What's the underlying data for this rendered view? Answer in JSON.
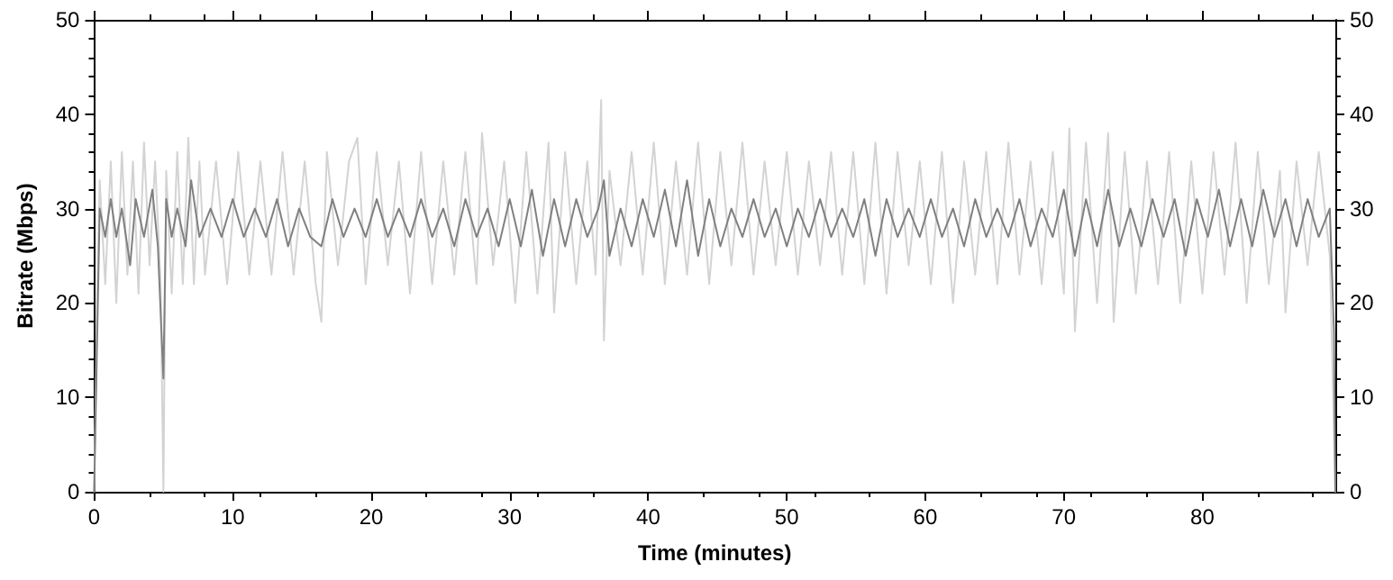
{
  "chart_data": {
    "type": "line",
    "xlabel": "Time (minutes)",
    "ylabel": "Bitrate (Mbps)",
    "xlim": [
      0,
      89.6
    ],
    "xticks": [
      0,
      10,
      20,
      30,
      40,
      50,
      60,
      70,
      80
    ],
    "ylim": [
      0,
      50
    ],
    "yticks": [
      0,
      10,
      20,
      30,
      40,
      50
    ],
    "y2lim": [
      0,
      50
    ],
    "y2ticks": [
      0,
      10,
      20,
      30,
      40,
      50
    ],
    "grid": false,
    "marker": "none",
    "line_style": "solid",
    "series": [
      {
        "color": "#d3d3d3",
        "x": [
          0,
          0.2,
          0.4,
          0.8,
          1.2,
          1.6,
          2.0,
          2.4,
          2.8,
          3.2,
          3.6,
          4.0,
          4.4,
          4.8,
          5.0,
          5.2,
          5.6,
          6.0,
          6.4,
          6.8,
          7.2,
          7.6,
          8.0,
          8.8,
          9.6,
          10.4,
          11.2,
          12.0,
          12.8,
          13.6,
          14.4,
          15.2,
          16.0,
          16.4,
          16.8,
          17.6,
          18.4,
          19.0,
          19.6,
          20.4,
          21.2,
          22.0,
          22.8,
          23.6,
          24.4,
          25.2,
          26.0,
          26.8,
          27.6,
          28.0,
          28.8,
          29.6,
          30.4,
          31.2,
          32.0,
          32.8,
          33.2,
          34.0,
          34.8,
          35.6,
          36.2,
          36.6,
          36.8,
          37.2,
          38.0,
          38.8,
          39.6,
          40.4,
          41.2,
          42.0,
          42.8,
          43.6,
          44.4,
          45.2,
          46.0,
          46.8,
          47.6,
          48.4,
          49.2,
          50.0,
          50.8,
          51.6,
          52.4,
          53.2,
          54.0,
          54.8,
          55.6,
          56.4,
          57.2,
          58.0,
          58.8,
          59.6,
          60.4,
          61.2,
          62.0,
          62.8,
          63.6,
          64.4,
          65.2,
          66.0,
          66.8,
          67.6,
          68.4,
          69.2,
          70.0,
          70.4,
          70.8,
          71.6,
          72.4,
          73.2,
          73.6,
          74.4,
          75.2,
          76.0,
          76.8,
          77.6,
          78.4,
          79.2,
          80.0,
          80.8,
          81.6,
          82.4,
          83.2,
          84.0,
          84.8,
          85.6,
          86.0,
          86.8,
          87.6,
          88.4,
          89.2,
          89.6
        ],
        "values": [
          0,
          19,
          33,
          22,
          35,
          20,
          36,
          23,
          35,
          21,
          37,
          24,
          35,
          22,
          0,
          34,
          21,
          36,
          22,
          37.5,
          22,
          35,
          23,
          35,
          22,
          36,
          23,
          35,
          23,
          36,
          23,
          35,
          22,
          18,
          36,
          24,
          35,
          37.5,
          22,
          36,
          24,
          35,
          21,
          36,
          22,
          35,
          23,
          36,
          22,
          38,
          24,
          35,
          20,
          36,
          21,
          37,
          19,
          36,
          22,
          35,
          23,
          41.5,
          16,
          34,
          24,
          36,
          23,
          37,
          22,
          35,
          23,
          37,
          22,
          36,
          24,
          37,
          23,
          35,
          24,
          36,
          23,
          35,
          24,
          36,
          23,
          36,
          22,
          37,
          21,
          36,
          24,
          35,
          22,
          36,
          20,
          35,
          23,
          36,
          22,
          37,
          23,
          35,
          22,
          36,
          21,
          38.5,
          17,
          37,
          20,
          38,
          18,
          36,
          21,
          35,
          22,
          36,
          20,
          35,
          21,
          36,
          23,
          37,
          20,
          36,
          22,
          34,
          19,
          35,
          24,
          36,
          25,
          0
        ]
      },
      {
        "color": "#808080",
        "x": [
          0,
          0.2,
          0.4,
          0.8,
          1.2,
          1.6,
          2.0,
          2.6,
          3.0,
          3.6,
          4.2,
          4.6,
          5.0,
          5.2,
          5.6,
          6.0,
          6.6,
          7.0,
          7.6,
          8.4,
          9.2,
          10.0,
          10.8,
          11.6,
          12.4,
          13.2,
          14.0,
          14.8,
          15.6,
          16.4,
          17.2,
          18.0,
          18.8,
          19.6,
          20.4,
          21.2,
          22.0,
          22.8,
          23.6,
          24.4,
          25.2,
          26.0,
          26.8,
          27.6,
          28.4,
          29.2,
          30.0,
          30.8,
          31.6,
          32.4,
          33.2,
          34.0,
          34.8,
          35.6,
          36.4,
          36.8,
          37.2,
          38.0,
          38.8,
          39.6,
          40.4,
          41.2,
          42.0,
          42.8,
          43.6,
          44.4,
          45.2,
          46.0,
          46.8,
          47.6,
          48.4,
          49.2,
          50.0,
          50.8,
          51.6,
          52.4,
          53.2,
          54.0,
          54.8,
          55.6,
          56.4,
          57.2,
          58.0,
          58.8,
          59.6,
          60.4,
          61.2,
          62.0,
          62.8,
          63.6,
          64.4,
          65.2,
          66.0,
          66.8,
          67.6,
          68.4,
          69.2,
          70.0,
          70.8,
          71.6,
          72.4,
          73.2,
          74.0,
          74.8,
          75.6,
          76.4,
          77.2,
          78.0,
          78.8,
          79.6,
          80.4,
          81.2,
          82.0,
          82.8,
          83.6,
          84.4,
          85.2,
          86.0,
          86.8,
          87.6,
          88.4,
          89.2,
          89.5,
          89.6
        ],
        "values": [
          0,
          15,
          30,
          27,
          31,
          27,
          30,
          24,
          31,
          27,
          32,
          26,
          12,
          31,
          27,
          30,
          26,
          33,
          27,
          30,
          27,
          31,
          27,
          30,
          27,
          31,
          26,
          30,
          27,
          26,
          31,
          27,
          30,
          27,
          31,
          27,
          30,
          27,
          31,
          27,
          30,
          26,
          31,
          27,
          30,
          26,
          31,
          26,
          32,
          25,
          31,
          26,
          31,
          27,
          30,
          33,
          25,
          30,
          26,
          31,
          27,
          32,
          26,
          33,
          25,
          31,
          26,
          30,
          27,
          31,
          27,
          30,
          26,
          30,
          27,
          31,
          27,
          30,
          27,
          31,
          25,
          31,
          27,
          30,
          27,
          31,
          27,
          30,
          26,
          31,
          27,
          30,
          27,
          31,
          26,
          30,
          27,
          32,
          25,
          31,
          26,
          32,
          26,
          30,
          26,
          31,
          27,
          31,
          25,
          31,
          27,
          32,
          26,
          31,
          26,
          32,
          27,
          31,
          26,
          31,
          27,
          30,
          17,
          0
        ]
      }
    ]
  }
}
